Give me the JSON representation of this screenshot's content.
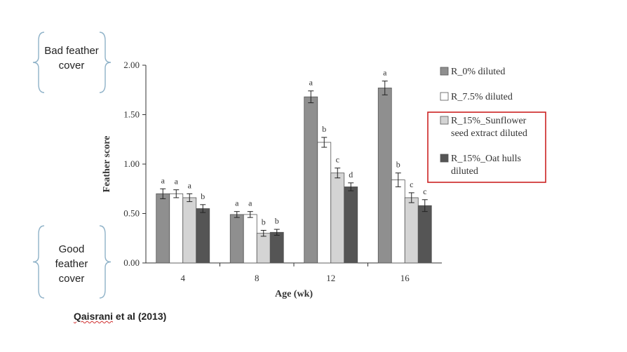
{
  "annotations": {
    "top": "Bad feather cover",
    "bottom": "Good feather cover"
  },
  "citation": {
    "underlined": "Qaisrani",
    "rest": " et al (2013)"
  },
  "colors": {
    "series": [
      "#8f8f8f",
      "#ffffff",
      "#d4d4d4",
      "#555555"
    ],
    "highlight_box": "#cc2222",
    "brace": "#8fb2c8"
  },
  "chart_data": {
    "type": "bar",
    "categories": [
      "4",
      "8",
      "12",
      "16"
    ],
    "xlabel": "Age (wk)",
    "ylabel": "Feather score",
    "ylim": [
      0,
      2.0
    ],
    "yticks": [
      "0.00",
      "0.50",
      "1.00",
      "1.50",
      "2.00"
    ],
    "grid": false,
    "legend_placement": "right",
    "highlighted_legend_entries": [
      2,
      3
    ],
    "series": [
      {
        "name": "R_0% diluted",
        "values": [
          0.7,
          0.49,
          1.68,
          1.77
        ],
        "errors": [
          0.05,
          0.03,
          0.06,
          0.07
        ],
        "letters": [
          "a",
          "a",
          "a",
          "a"
        ]
      },
      {
        "name": "R_7.5% diluted",
        "values": [
          0.7,
          0.49,
          1.22,
          0.84
        ],
        "errors": [
          0.04,
          0.03,
          0.05,
          0.07
        ],
        "letters": [
          "a",
          "a",
          "b",
          "b"
        ]
      },
      {
        "name": "R_15%_Sunflower seed extract diluted",
        "values": [
          0.66,
          0.3,
          0.91,
          0.66
        ],
        "errors": [
          0.04,
          0.03,
          0.05,
          0.05
        ],
        "letters": [
          "a",
          "b",
          "c",
          "c"
        ]
      },
      {
        "name": "R_15%_Oat hulls diluted",
        "values": [
          0.55,
          0.31,
          0.77,
          0.58
        ],
        "errors": [
          0.04,
          0.03,
          0.04,
          0.06
        ],
        "letters": [
          "b",
          "b",
          "d",
          "c"
        ]
      }
    ]
  }
}
